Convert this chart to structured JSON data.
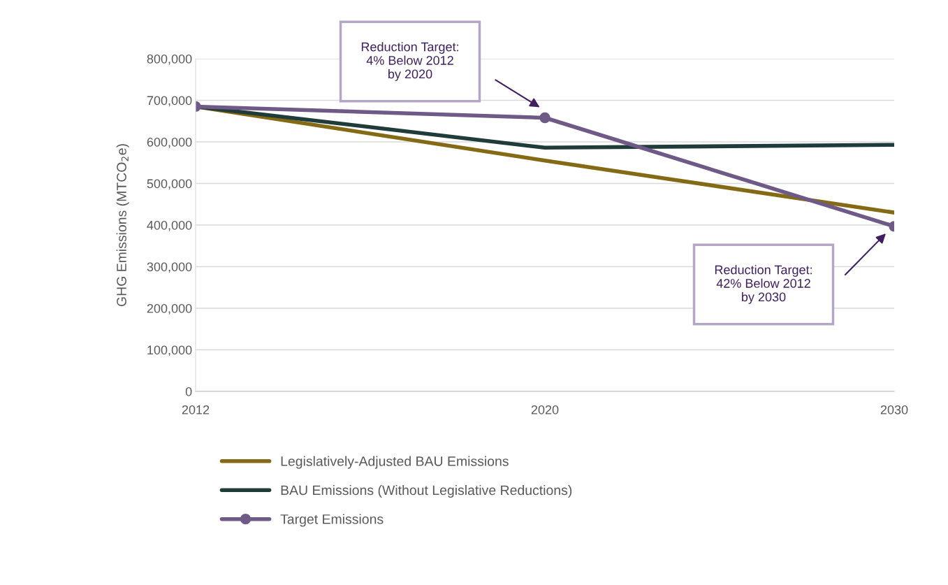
{
  "chart_data": {
    "type": "line",
    "ylabel": "GHG Emissions (MTCO$_{2}$e)",
    "categories": [
      "2012",
      "2020",
      "2030"
    ],
    "series": [
      {
        "name": "Legislatively-Adjusted BAU Emissions",
        "color": "#846a14",
        "values": [
          685000,
          555000,
          430000
        ]
      },
      {
        "name": "BAU Emissions (Without Legislative Reductions)",
        "color": "#1f3b3a",
        "values": [
          685000,
          586000,
          593000
        ]
      },
      {
        "name": "Target Emissions",
        "color": "#6f5a87",
        "values": [
          685000,
          658000,
          397000
        ],
        "marker": "circle"
      }
    ],
    "ylim": [
      0,
      800000
    ],
    "yticks": [
      {
        "value": 0,
        "label": "0"
      },
      {
        "value": 100000,
        "label": "100,000"
      },
      {
        "value": 200000,
        "label": "200,000"
      },
      {
        "value": 300000,
        "label": "300,000"
      },
      {
        "value": 400000,
        "label": "400,000"
      },
      {
        "value": 500000,
        "label": "500,000"
      },
      {
        "value": 600000,
        "label": "600,000"
      },
      {
        "value": 700000,
        "label": "700,000"
      },
      {
        "value": 800000,
        "label": "800,000"
      }
    ],
    "annotations": [
      "Reduction Target:\n4% Below 2012\nby 2020",
      "Reduction Target:\n42% Below 2012\nby 2030"
    ],
    "grid": "y",
    "legend": "bottom"
  }
}
